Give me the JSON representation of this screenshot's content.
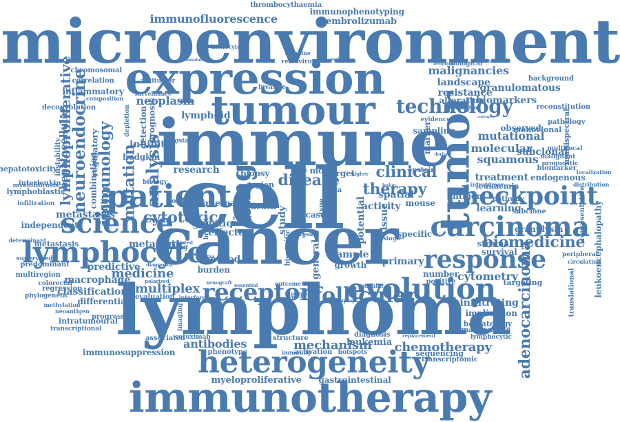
{
  "cloud": {
    "color": "#4a7bb0",
    "words": [
      "microenvironment",
      "expression",
      "tumour",
      "immune",
      "cell",
      "cancer",
      "lymphoma",
      "immunotherapy",
      "heterogeneity",
      "tumor",
      "patient",
      "science",
      "lymphocyte",
      "evolution",
      "checkpoint",
      "carcinoma",
      "response",
      "receptor",
      "follicular",
      "technology",
      "biomedicine",
      "disease",
      "lung",
      "therapy",
      "clinical",
      "cytotoxic",
      "analysis",
      "mutation",
      "immunology",
      "neuroendocrine",
      "lymphoproliferative",
      "hepatocellular",
      "adenocarcinoma",
      "chemotherapy",
      "mechanism",
      "antibodies",
      "metastases",
      "medicine",
      "macrophage",
      "multiplex",
      "classification",
      "cytometry",
      "malignancies",
      "landscape",
      "resistance",
      "granulomatous",
      "biomarkers",
      "immunofluorescence",
      "immunophenotyping",
      "pembrolizumab",
      "thrombocythaemia",
      "myeloproliferative",
      "gastrointestinal",
      "transcriptomic",
      "sequencing",
      "leukaemia",
      "treatment",
      "endogenous",
      "squamous",
      "molecular",
      "mutational",
      "monoclonal",
      "multispectral",
      "subclonal",
      "learning",
      "granulysin",
      "leukoencephalopathy",
      "representative",
      "translational",
      "inflammatory",
      "deconvolution",
      "correlation",
      "chromosomal",
      "predictive",
      "differential",
      "intratumoural",
      "progressive",
      "transcriptional",
      "immunosuppression",
      "associated",
      "phenotype",
      "immunity",
      "activation",
      "hotspots",
      "structure",
      "leukemia",
      "diagnosis",
      "evaluation",
      "interferon",
      "infiltrating",
      "implication",
      "hematology",
      "maintenance",
      "lymphocytic",
      "targeting",
      "number",
      "positive",
      "primary",
      "sample",
      "growth",
      "general",
      "method",
      "burden",
      "metastatic",
      "finding",
      "genetic",
      "effector",
      "research",
      "internal",
      "somatic",
      "profiling",
      "regulatory",
      "combination",
      "inhibitor",
      "hodgkin",
      "detection",
      "prognosis",
      "neoplasm",
      "lymphoid",
      "antitumor",
      "surveillance",
      "invasive",
      "stromal",
      "survival",
      "antigen",
      "mouse",
      "spatial",
      "tissue",
      "activity",
      "potential",
      "specific",
      "epstein",
      "subclone",
      "observed",
      "pathway",
      "alteration",
      "reaction",
      "evidence",
      "marker",
      "sampling",
      "background",
      "biological",
      "interstrand",
      "pathology",
      "multifocal",
      "malignant",
      "prognostic",
      "biomarker",
      "peripheral",
      "circulating",
      "reconstitution",
      "localization",
      "distribution",
      "predominant",
      "supervised",
      "multiregion",
      "determinant",
      "metastasis",
      "independent",
      "infiltration",
      "myelofibrosis",
      "lymphoblastic",
      "hepatotoxicity",
      "interleukin",
      "instability",
      "colorectal",
      "regression",
      "phylogenetic",
      "methylation",
      "neoantigen",
      "histiocyte",
      "retrovirus",
      "cytokine",
      "cumulation",
      "melanoma",
      "composition",
      "depletion",
      "prostate",
      "biology",
      "model",
      "target",
      "biopsy",
      "death",
      "case",
      "data",
      "result",
      "single",
      "loss",
      "higher",
      "nodular",
      "interplay",
      "xenograft",
      "outcome",
      "essential",
      "function",
      "hepatitis",
      "cetuximab",
      "imaging",
      "diagnostic",
      "polarized",
      "mediated",
      "plasma",
      "intratumor",
      "neoplasia",
      "conjugate",
      "infection",
      "derived",
      "lesion",
      "region",
      "drug",
      "study",
      "type",
      "cohort",
      "report",
      "relapse",
      "breast",
      "setting",
      "bispecific",
      "replacement"
    ]
  }
}
